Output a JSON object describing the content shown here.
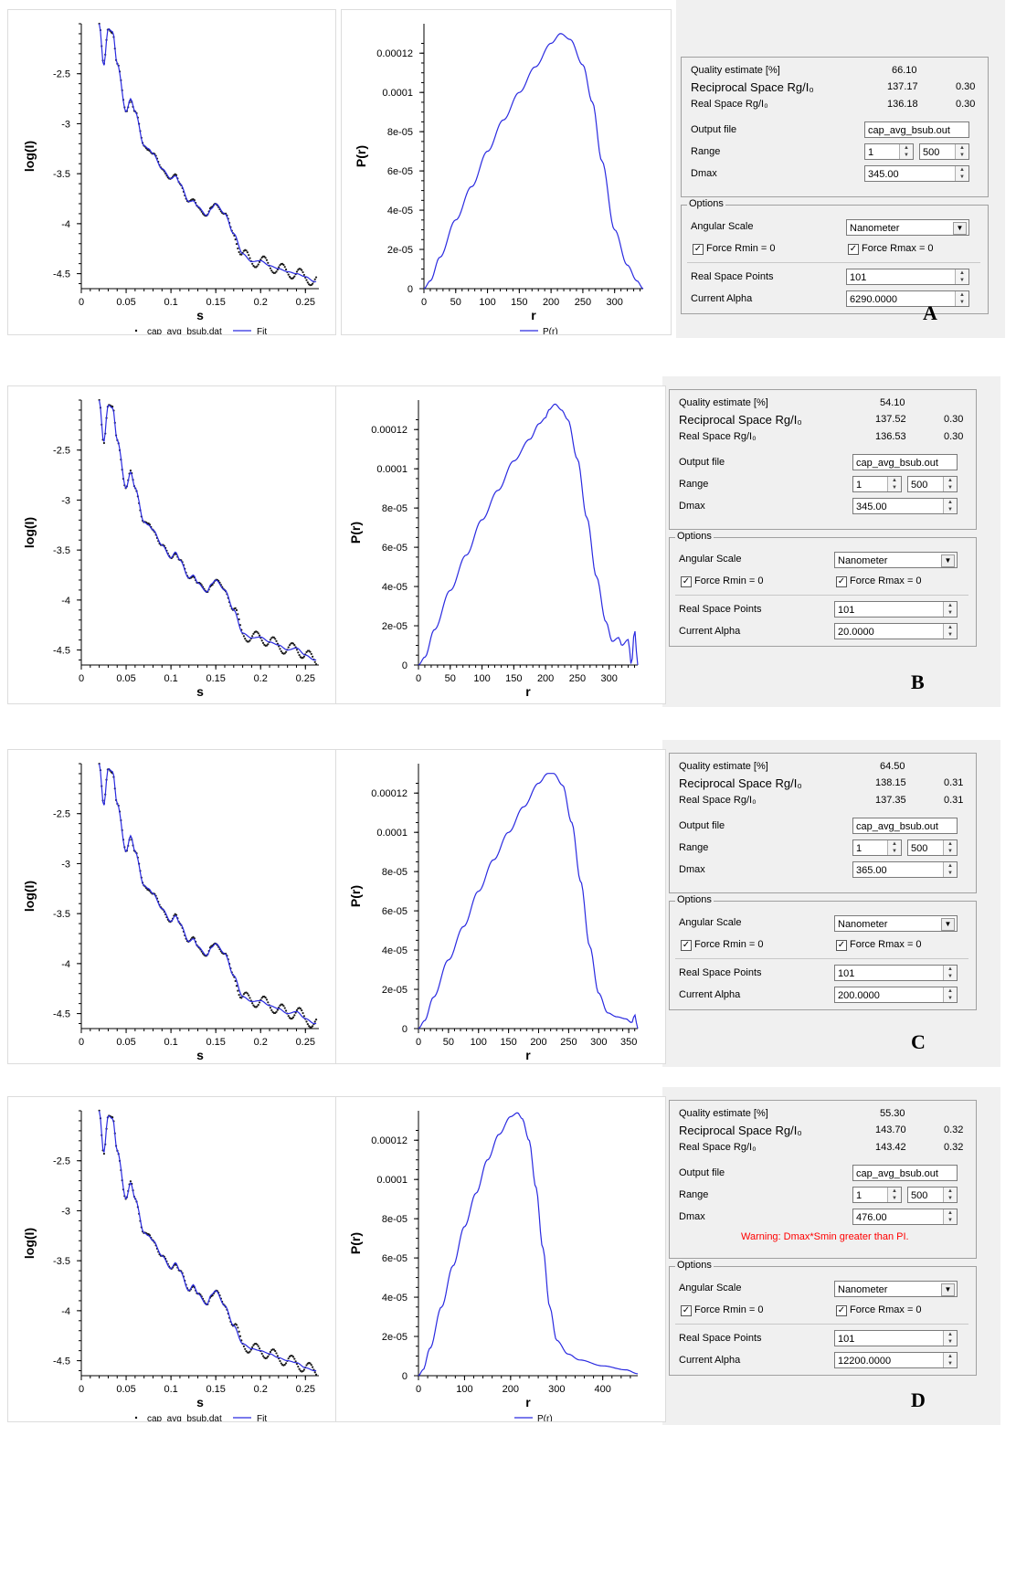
{
  "common": {
    "quality_label": "Quality estimate [%]",
    "reciprocal_label": "Reciprocal Space Rg/I₀",
    "real_label": "Real Space Rg/I₀",
    "output_label": "Output file",
    "output_value": "cap_avg_bsub.out",
    "range_label": "Range",
    "range_from": "1",
    "range_to": "500",
    "dmax_label": "Dmax",
    "options_label": "Options",
    "angular_label": "Angular Scale",
    "angular_value": "Nanometer",
    "force_rmin_label": "Force Rmin = 0",
    "force_rmax_label": "Force Rmax = 0",
    "rsp_label": "Real Space Points",
    "rsp_value": "101",
    "alpha_label": "Current Alpha",
    "legend_data": "cap_avg_bsub.dat",
    "legend_fit": "Fit",
    "legend_pr": "P(r)",
    "left_ylabel": "log(I)",
    "left_xlabel": "s",
    "right_ylabel": "P(r)",
    "right_xlabel": "r",
    "left_xticks": [
      "0",
      "0.05",
      "0.1",
      "0.15",
      "0.2",
      "0.25"
    ],
    "left_yticks": [
      "-2.5",
      "-3",
      "-3.5",
      "-4",
      "-4.5"
    ],
    "pr_yticks": [
      "0",
      "2e-05",
      "4e-05",
      "6e-05",
      "8e-05",
      "0.0001",
      "0.00012"
    ],
    "colors": {
      "curve": "#2a2ae0",
      "points": "#1a1a1a",
      "warning": "#ff0000"
    }
  },
  "panels": [
    {
      "letter": "A",
      "quality": "66.10",
      "rec_rg": "137.17",
      "rec_i0": "0.30",
      "real_rg": "136.18",
      "real_i0": "0.30",
      "dmax": "345.00",
      "alpha": "6290.0000",
      "warning": "",
      "pr_xticks": [
        "0",
        "50",
        "100",
        "150",
        "200",
        "250",
        "300"
      ]
    },
    {
      "letter": "B",
      "quality": "54.10",
      "rec_rg": "137.52",
      "rec_i0": "0.30",
      "real_rg": "136.53",
      "real_i0": "0.30",
      "dmax": "345.00",
      "alpha": "20.0000",
      "warning": "",
      "pr_xticks": [
        "0",
        "50",
        "100",
        "150",
        "200",
        "250",
        "300"
      ]
    },
    {
      "letter": "C",
      "quality": "64.50",
      "rec_rg": "138.15",
      "rec_i0": "0.31",
      "real_rg": "137.35",
      "real_i0": "0.31",
      "dmax": "365.00",
      "alpha": "200.0000",
      "warning": "",
      "pr_xticks": [
        "0",
        "50",
        "100",
        "150",
        "200",
        "250",
        "300",
        "350"
      ]
    },
    {
      "letter": "D",
      "quality": "55.30",
      "rec_rg": "143.70",
      "rec_i0": "0.32",
      "real_rg": "143.42",
      "real_i0": "0.32",
      "dmax": "476.00",
      "alpha": "12200.0000",
      "warning": "Warning: Dmax*Smin greater than PI.",
      "pr_xticks": [
        "0",
        "100",
        "200",
        "300",
        "400"
      ]
    }
  ],
  "chart_data": [
    {
      "type": "line",
      "panel": "A",
      "title": "",
      "xlabel": "s",
      "ylabel": "log(I)",
      "xlim": [
        0,
        0.265
      ],
      "ylim": [
        -4.65,
        -2.0
      ],
      "series": [
        {
          "name": "Fit",
          "x": [
            0.02,
            0.025,
            0.03,
            0.035,
            0.04,
            0.05,
            0.055,
            0.06,
            0.07,
            0.075,
            0.08,
            0.09,
            0.1,
            0.105,
            0.11,
            0.12,
            0.125,
            0.13,
            0.14,
            0.145,
            0.15,
            0.16,
            0.17,
            0.18,
            0.19,
            0.2,
            0.21,
            0.22,
            0.23,
            0.24,
            0.25,
            0.26
          ],
          "y": [
            -2.0,
            -2.42,
            -2.05,
            -2.08,
            -2.4,
            -2.88,
            -2.75,
            -2.88,
            -3.22,
            -3.25,
            -3.3,
            -3.45,
            -3.55,
            -3.52,
            -3.6,
            -3.78,
            -3.77,
            -3.83,
            -3.92,
            -3.85,
            -3.8,
            -3.9,
            -4.1,
            -4.3,
            -4.38,
            -4.37,
            -4.42,
            -4.45,
            -4.48,
            -4.5,
            -4.53,
            -4.58
          ]
        }
      ]
    },
    {
      "type": "line",
      "panel": "A",
      "title": "",
      "xlabel": "r",
      "ylabel": "P(r)",
      "xlim": [
        0,
        345
      ],
      "ylim": [
        0,
        0.000135
      ],
      "series": [
        {
          "name": "P(r)",
          "x": [
            0,
            10,
            25,
            50,
            75,
            100,
            125,
            150,
            175,
            200,
            215,
            230,
            250,
            265,
            280,
            300,
            320,
            335,
            345
          ],
          "y": [
            0,
            4e-06,
            1.6e-05,
            3.5e-05,
            5.2e-05,
            7e-05,
            8.6e-05,
            0.0001,
            0.000113,
            0.000125,
            0.00013,
            0.000127,
            0.000114,
            9.5e-05,
            6.5e-05,
            3e-05,
            1.2e-05,
            4e-06,
            0
          ]
        }
      ]
    },
    {
      "type": "line",
      "panel": "B",
      "title": "",
      "xlabel": "s",
      "ylabel": "log(I)",
      "xlim": [
        0,
        0.265
      ],
      "ylim": [
        -4.65,
        -2.0
      ],
      "series": [
        {
          "name": "Fit",
          "x": [
            0.02,
            0.025,
            0.03,
            0.035,
            0.04,
            0.05,
            0.055,
            0.06,
            0.07,
            0.075,
            0.08,
            0.09,
            0.1,
            0.105,
            0.11,
            0.12,
            0.125,
            0.13,
            0.14,
            0.145,
            0.15,
            0.16,
            0.17,
            0.18,
            0.19,
            0.2,
            0.21,
            0.22,
            0.23,
            0.24,
            0.25,
            0.26
          ],
          "y": [
            -2.0,
            -2.42,
            -2.05,
            -2.08,
            -2.4,
            -2.88,
            -2.72,
            -2.88,
            -3.22,
            -3.25,
            -3.3,
            -3.45,
            -3.58,
            -3.52,
            -3.6,
            -3.78,
            -3.75,
            -3.83,
            -3.92,
            -3.84,
            -3.8,
            -3.9,
            -4.1,
            -4.33,
            -4.38,
            -4.37,
            -4.42,
            -4.45,
            -4.5,
            -4.48,
            -4.55,
            -4.6
          ]
        }
      ]
    },
    {
      "type": "line",
      "panel": "B",
      "title": "",
      "xlabel": "r",
      "ylabel": "P(r)",
      "xlim": [
        0,
        345
      ],
      "ylim": [
        0,
        0.000135
      ],
      "series": [
        {
          "name": "P(r)",
          "x": [
            0,
            10,
            25,
            50,
            75,
            100,
            125,
            150,
            175,
            190,
            200,
            205,
            215,
            225,
            235,
            250,
            265,
            280,
            295,
            305,
            315,
            320,
            330,
            335,
            340,
            345
          ],
          "y": [
            0,
            4e-06,
            1.8e-05,
            3.8e-05,
            5.6e-05,
            7.4e-05,
            8.9e-05,
            0.000104,
            0.000115,
            0.000123,
            0.000126,
            0.00013,
            0.000133,
            0.00013,
            0.000125,
            0.000105,
            7.5e-05,
            4.5e-05,
            2.2e-05,
            1.2e-05,
            1.4e-05,
            1e-05,
            1.3e-05,
            0,
            1.8e-05,
            0
          ]
        }
      ]
    },
    {
      "type": "line",
      "panel": "C",
      "title": "",
      "xlabel": "s",
      "ylabel": "log(I)",
      "xlim": [
        0,
        0.265
      ],
      "ylim": [
        -4.65,
        -2.0
      ],
      "series": [
        {
          "name": "Fit",
          "x": [
            0.02,
            0.025,
            0.03,
            0.035,
            0.04,
            0.05,
            0.055,
            0.06,
            0.07,
            0.075,
            0.08,
            0.09,
            0.1,
            0.105,
            0.11,
            0.12,
            0.125,
            0.13,
            0.14,
            0.145,
            0.15,
            0.16,
            0.17,
            0.18,
            0.19,
            0.2,
            0.21,
            0.22,
            0.23,
            0.24,
            0.25,
            0.26
          ],
          "y": [
            -2.0,
            -2.42,
            -2.05,
            -2.08,
            -2.4,
            -2.88,
            -2.72,
            -2.88,
            -3.22,
            -3.25,
            -3.3,
            -3.45,
            -3.58,
            -3.52,
            -3.6,
            -3.78,
            -3.75,
            -3.83,
            -3.92,
            -3.84,
            -3.8,
            -3.9,
            -4.12,
            -4.33,
            -4.38,
            -4.37,
            -4.42,
            -4.45,
            -4.5,
            -4.48,
            -4.55,
            -4.6
          ]
        }
      ]
    },
    {
      "type": "line",
      "panel": "C",
      "title": "",
      "xlabel": "r",
      "ylabel": "P(r)",
      "xlim": [
        0,
        365
      ],
      "ylim": [
        0,
        0.000135
      ],
      "series": [
        {
          "name": "P(r)",
          "x": [
            0,
            10,
            25,
            50,
            75,
            100,
            125,
            150,
            175,
            200,
            215,
            225,
            240,
            255,
            270,
            285,
            300,
            315,
            330,
            345,
            355,
            360,
            365
          ],
          "y": [
            0,
            4e-06,
            1.6e-05,
            3.5e-05,
            5.2e-05,
            7e-05,
            8.6e-05,
            0.0001,
            0.000113,
            0.000125,
            0.00013,
            0.00013,
            0.000124,
            0.000105,
            7.5e-05,
            4.2e-05,
            1.8e-05,
            8e-06,
            6e-06,
            5e-06,
            3e-06,
            7e-06,
            0
          ]
        }
      ]
    },
    {
      "type": "line",
      "panel": "D",
      "title": "",
      "xlabel": "s",
      "ylabel": "log(I)",
      "xlim": [
        0,
        0.265
      ],
      "ylim": [
        -4.65,
        -2.0
      ],
      "series": [
        {
          "name": "Fit",
          "x": [
            0.02,
            0.025,
            0.03,
            0.035,
            0.04,
            0.05,
            0.055,
            0.06,
            0.07,
            0.075,
            0.08,
            0.09,
            0.1,
            0.105,
            0.11,
            0.12,
            0.125,
            0.13,
            0.14,
            0.145,
            0.15,
            0.16,
            0.17,
            0.18,
            0.19,
            0.2,
            0.21,
            0.22,
            0.23,
            0.24,
            0.25,
            0.26
          ],
          "y": [
            -2.0,
            -2.42,
            -2.05,
            -2.08,
            -2.4,
            -2.88,
            -2.72,
            -2.88,
            -3.22,
            -3.25,
            -3.3,
            -3.45,
            -3.58,
            -3.52,
            -3.6,
            -3.8,
            -3.74,
            -3.83,
            -3.94,
            -3.84,
            -3.8,
            -3.95,
            -4.15,
            -4.33,
            -4.38,
            -4.4,
            -4.43,
            -4.47,
            -4.5,
            -4.52,
            -4.57,
            -4.6
          ]
        }
      ]
    },
    {
      "type": "line",
      "panel": "D",
      "title": "",
      "xlabel": "r",
      "ylabel": "P(r)",
      "xlim": [
        0,
        476
      ],
      "ylim": [
        0,
        0.000135
      ],
      "series": [
        {
          "name": "P(r)",
          "x": [
            0,
            10,
            25,
            50,
            75,
            100,
            125,
            150,
            175,
            200,
            215,
            225,
            240,
            255,
            270,
            285,
            300,
            325,
            350,
            400,
            450,
            476
          ],
          "y": [
            0,
            3e-06,
            1.4e-05,
            3.5e-05,
            5.6e-05,
            7.6e-05,
            9.3e-05,
            0.00011,
            0.000123,
            0.000132,
            0.000134,
            0.000131,
            0.00012,
            9.6e-05,
            6.5e-05,
            3.5e-05,
            1.8e-05,
            1.1e-05,
            8e-06,
            5e-06,
            3e-06,
            1e-06
          ]
        }
      ]
    }
  ]
}
